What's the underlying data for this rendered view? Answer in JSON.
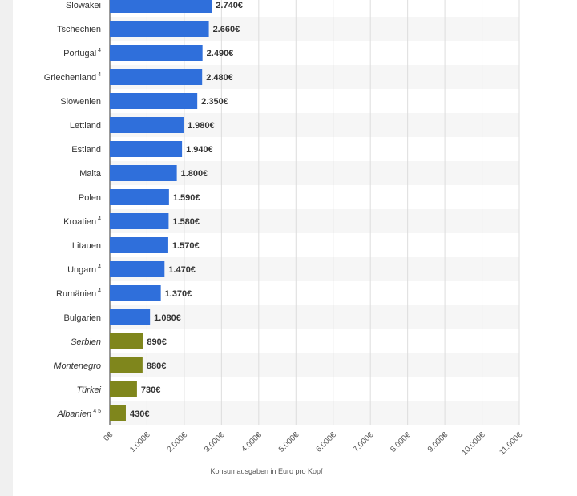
{
  "chart_data": {
    "type": "bar",
    "orientation": "horizontal",
    "categories": [
      "Slowakei",
      "Tschechien",
      "Portugal",
      "Griechenland",
      "Slowenien",
      "Lettland",
      "Estland",
      "Malta",
      "Polen",
      "Kroatien",
      "Litauen",
      "Ungarn",
      "Rumänien",
      "Bulgarien",
      "Serbien",
      "Montenegro",
      "Türkei",
      "Albanien"
    ],
    "footnotes": [
      "",
      "",
      "4",
      "4",
      "",
      "",
      "",
      "",
      "",
      "4",
      "",
      "4",
      "4",
      "",
      "",
      "",
      "",
      "4 5"
    ],
    "italic": [
      false,
      false,
      false,
      false,
      false,
      false,
      false,
      false,
      false,
      false,
      false,
      false,
      false,
      false,
      true,
      true,
      true,
      true
    ],
    "values": [
      2740,
      2660,
      2490,
      2480,
      2350,
      1980,
      1940,
      1800,
      1590,
      1580,
      1570,
      1470,
      1370,
      1080,
      890,
      880,
      730,
      430
    ],
    "value_labels": [
      "2.740€",
      "2.660€",
      "2.490€",
      "2.480€",
      "2.350€",
      "1.980€",
      "1.940€",
      "1.800€",
      "1.590€",
      "1.580€",
      "1.570€",
      "1.470€",
      "1.370€",
      "1.080€",
      "890€",
      "880€",
      "730€",
      "430€"
    ],
    "bar_colors": [
      "#2f6fdb",
      "#2f6fdb",
      "#2f6fdb",
      "#2f6fdb",
      "#2f6fdb",
      "#2f6fdb",
      "#2f6fdb",
      "#2f6fdb",
      "#2f6fdb",
      "#2f6fdb",
      "#2f6fdb",
      "#2f6fdb",
      "#2f6fdb",
      "#2f6fdb",
      "#7f861c",
      "#7f861c",
      "#7f861c",
      "#7f861c"
    ],
    "xlim": [
      0,
      11000
    ],
    "xticks": [
      0,
      1000,
      2000,
      3000,
      4000,
      5000,
      6000,
      7000,
      8000,
      9000,
      10000,
      11000
    ],
    "xtick_labels": [
      "0€",
      "1.000€",
      "2.000€",
      "3.000€",
      "4.000€",
      "5.000€",
      "6.000€",
      "7.000€",
      "8.000€",
      "9.000€",
      "10.000€",
      "11.000€"
    ],
    "xlabel": "Konsumausgaben in Euro pro Kopf",
    "grid": true
  }
}
